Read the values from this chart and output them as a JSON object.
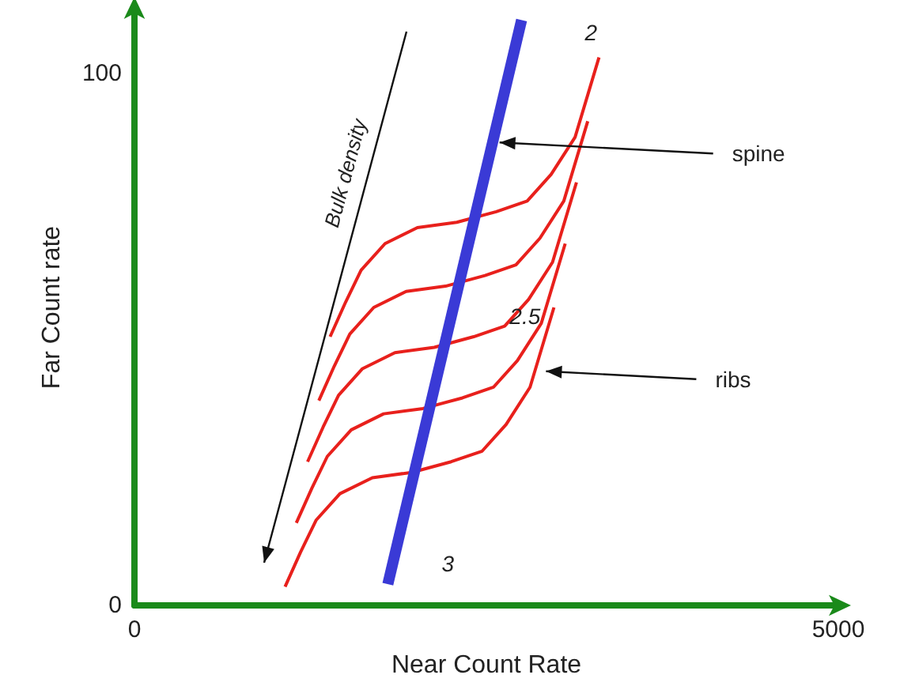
{
  "chart_data": {
    "type": "line",
    "xlabel": "Near Count Rate",
    "ylabel": "Far Count rate",
    "xlim": [
      0,
      5000
    ],
    "xticks": [
      0,
      5000
    ],
    "ylim": [
      0,
      112
    ],
    "yticks": [
      0,
      100
    ],
    "grid": false,
    "marker": "none",
    "line_style": "solid",
    "series": [
      {
        "color": "#e8201c",
        "x": [
          1070,
          1180,
          1290,
          1460,
          1690,
          1970,
          2250,
          2470,
          2640,
          2810,
          2980
        ],
        "values": [
          3.5,
          10,
          16,
          21,
          24,
          25,
          27,
          29,
          34,
          41,
          56
        ]
      },
      {
        "color": "#e8201c",
        "x": [
          1150,
          1260,
          1370,
          1540,
          1770,
          2050,
          2330,
          2550,
          2720,
          2890,
          3060
        ],
        "values": [
          15.5,
          22,
          28,
          33,
          36,
          37,
          39,
          41,
          46,
          53,
          68
        ]
      },
      {
        "color": "#e8201c",
        "x": [
          1230,
          1340,
          1450,
          1620,
          1850,
          2130,
          2410,
          2630,
          2800,
          2970,
          3140
        ],
        "values": [
          27,
          33.5,
          39.5,
          44.5,
          47.5,
          48.5,
          50.5,
          52.5,
          57.5,
          64.5,
          79.5
        ]
      },
      {
        "color": "#e8201c",
        "x": [
          1310,
          1420,
          1530,
          1700,
          1930,
          2210,
          2490,
          2710,
          2880,
          3050,
          3220
        ],
        "values": [
          38.5,
          45,
          51,
          56,
          59,
          60,
          62,
          64,
          69,
          76,
          91
        ]
      },
      {
        "color": "#e8201c",
        "x": [
          1390,
          1500,
          1610,
          1780,
          2010,
          2290,
          2570,
          2790,
          2960,
          3130,
          3300
        ],
        "values": [
          50.5,
          57,
          63,
          68,
          71,
          72,
          74,
          76,
          81,
          88,
          103
        ]
      },
      {
        "color": "#3a3ad6",
        "x": [
          1800,
          2750
        ],
        "values": [
          4,
          110
        ]
      }
    ],
    "annotations": [
      {
        "text": "spine",
        "x": 2560,
        "y": 87
      },
      {
        "text": "ribs",
        "x": 2890,
        "y": 44
      },
      "Bulk density",
      "2",
      {
        "text": "2.5",
        "x": 2620,
        "y": 54
      },
      "3"
    ]
  }
}
